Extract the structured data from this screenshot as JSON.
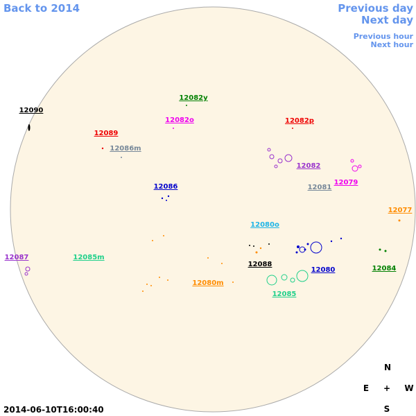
{
  "nav": {
    "back": "Back to 2014",
    "previous_day": "Previous day",
    "next_day": "Next day",
    "previous_hour": "Previous hour",
    "next_hour": "Next hour"
  },
  "regions": [
    "12090",
    "12089",
    "12086m",
    "12082y",
    "12082o",
    "12082p",
    "12082",
    "12081",
    "12079",
    "12086",
    "12077",
    "12080o",
    "12087",
    "12085m",
    "12088",
    "12080",
    "12084",
    "12080m",
    "12085"
  ],
  "compass": {
    "north": "N",
    "east": "E",
    "center": "+",
    "west": "W",
    "south": "S"
  },
  "timestamp": "2014-06-10T16:00:40"
}
